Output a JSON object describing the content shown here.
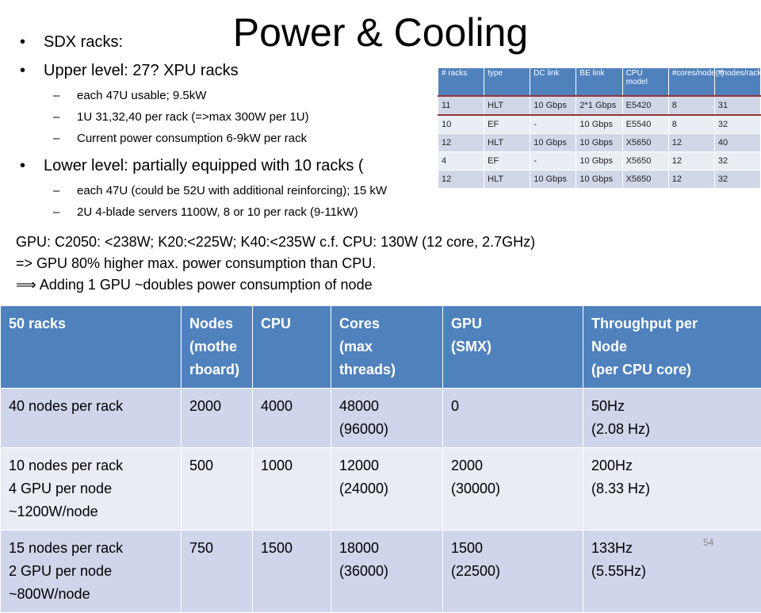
{
  "title": "Power & Cooling",
  "bullets": [
    {
      "text": "SDX racks:",
      "sub": []
    },
    {
      "text": "Upper level: 27? XPU racks",
      "sub": [
        "each 47U usable; 9.5kW",
        "1U 31,32,40 per rack (=>max 300W per 1U)",
        "Current power consumption 6-9kW per rack"
      ]
    },
    {
      "text": "Lower level: partially equipped with 10 racks (",
      "sub": [
        "each 47U (could be 52U with additional reinforcing); 15 kW",
        "2U 4-blade servers 1100W, 8 or 10 per rack (9-11kW)"
      ]
    }
  ],
  "paragraph": [
    "GPU: C2050: <238W; K20:<225W; K40:<235W c.f. CPU: 130W (12 core, 2.7GHz)",
    "=> GPU 80% higher max. power consumption than CPU.",
    "⟹ Adding 1 GPU ~doubles power consumption of node"
  ],
  "rack_table": {
    "header": [
      "# racks",
      "type",
      "DC link",
      "BE link",
      "CPU model",
      "#cores/node(*)",
      "#nodes/rack"
    ],
    "rows": [
      [
        "11",
        "HLT",
        "10 Gbps",
        "2*1 Gbps",
        "E5420",
        "8",
        "31"
      ],
      [
        "10",
        "EF",
        "-",
        "10 Gbps",
        "E5540",
        "8",
        "32"
      ],
      [
        "12",
        "HLT",
        "10 Gbps",
        "10 Gbps",
        "X5650",
        "12",
        "40"
      ],
      [
        "4",
        "EF",
        "-",
        "10 Gbps",
        "X5650",
        "12",
        "32"
      ],
      [
        "12",
        "HLT",
        "10 Gbps",
        "10 Gbps",
        "X5650",
        "12",
        "32"
      ]
    ]
  },
  "table": {
    "header": [
      "50 racks",
      "Nodes\n(mothe\nrboard)",
      "CPU",
      "Cores\n(max\nthreads)",
      "GPU\n(SMX)",
      "Throughput per\nNode\n(per CPU core)"
    ],
    "rows": [
      [
        "40 nodes per rack",
        "2000",
        "4000",
        "48000\n(96000)",
        "0",
        "50Hz\n(2.08 Hz)"
      ],
      [
        "10 nodes per rack\n4 GPU per node\n~1200W/node",
        "500",
        "1000",
        "12000\n(24000)",
        "2000\n(30000)",
        "200Hz\n(8.33 Hz)"
      ],
      [
        "15 nodes per rack\n2 GPU per node\n~800W/node",
        "750",
        "1500",
        "18000\n(36000)",
        "1500\n(22500)",
        "133Hz\n(5.55Hz)"
      ]
    ]
  },
  "page_number": "54"
}
